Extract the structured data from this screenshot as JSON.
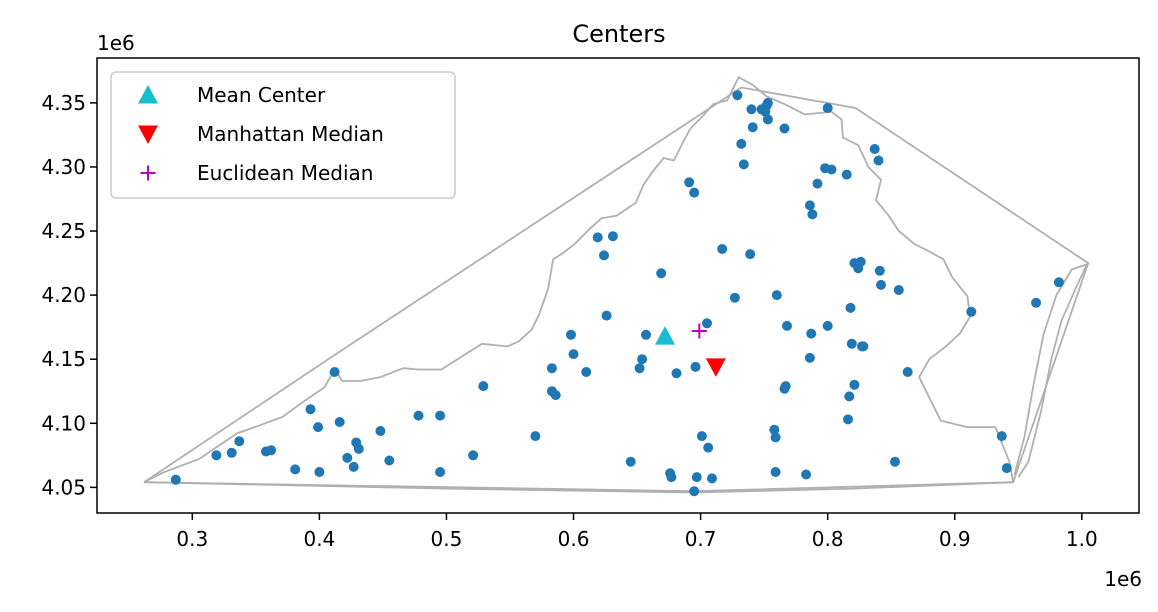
{
  "chart_data": {
    "type": "scatter",
    "title": "Centers",
    "xlabel": "",
    "ylabel": "",
    "x_offset_text": "1e6",
    "y_offset_text": "1e6",
    "x_scale": 1000000,
    "y_scale": 1000000,
    "xlim": [
      0.225,
      1.045
    ],
    "ylim": [
      4.03,
      4.385
    ],
    "x_ticks": [
      0.3,
      0.4,
      0.5,
      0.6,
      0.7,
      0.8,
      0.9,
      1.0
    ],
    "x_tick_labels": [
      "0.3",
      "0.4",
      "0.5",
      "0.6",
      "0.7",
      "0.8",
      "0.9",
      "1.0"
    ],
    "y_ticks": [
      4.05,
      4.1,
      4.15,
      4.2,
      4.25,
      4.3,
      4.35
    ],
    "y_tick_labels": [
      "4.05",
      "4.10",
      "4.15",
      "4.20",
      "4.25",
      "4.30",
      "4.35"
    ],
    "grid": false,
    "legend_position": "upper-left",
    "colors": {
      "points": "#1f77b4",
      "mean_center": "#17becf",
      "manhattan_median": "#ff0000",
      "euclidean_median": "#bf00bf",
      "outline": "#b0b0b0"
    },
    "series": [
      {
        "name": "Mean Center",
        "marker": "triangle-up",
        "color": "#17becf",
        "x": [
          0.672
        ],
        "y": [
          4.168
        ]
      },
      {
        "name": "Manhattan Median",
        "marker": "triangle-down",
        "color": "#ff0000",
        "x": [
          0.712
        ],
        "y": [
          4.144
        ]
      },
      {
        "name": "Euclidean Median",
        "marker": "plus",
        "color": "#bf00bf",
        "x": [
          0.699
        ],
        "y": [
          4.172
        ]
      }
    ],
    "points": {
      "color": "#1f77b4",
      "x": [
        0.287,
        0.319,
        0.331,
        0.337,
        0.358,
        0.362,
        0.381,
        0.393,
        0.399,
        0.4,
        0.412,
        0.416,
        0.422,
        0.427,
        0.429,
        0.431,
        0.448,
        0.455,
        0.478,
        0.495,
        0.495,
        0.521,
        0.529,
        0.57,
        0.583,
        0.583,
        0.586,
        0.598,
        0.6,
        0.61,
        0.619,
        0.624,
        0.626,
        0.631,
        0.645,
        0.652,
        0.654,
        0.657,
        0.669,
        0.676,
        0.677,
        0.681,
        0.691,
        0.695,
        0.695,
        0.696,
        0.697,
        0.701,
        0.705,
        0.706,
        0.709,
        0.717,
        0.727,
        0.729,
        0.732,
        0.734,
        0.739,
        0.74,
        0.741,
        0.748,
        0.751,
        0.752,
        0.753,
        0.753,
        0.758,
        0.759,
        0.759,
        0.76,
        0.766,
        0.766,
        0.767,
        0.768,
        0.783,
        0.786,
        0.786,
        0.787,
        0.788,
        0.792,
        0.798,
        0.8,
        0.8,
        0.803,
        0.815,
        0.816,
        0.817,
        0.818,
        0.819,
        0.821,
        0.821,
        0.824,
        0.826,
        0.827,
        0.828,
        0.837,
        0.84,
        0.841,
        0.842,
        0.853,
        0.856,
        0.863,
        0.913,
        0.937,
        0.941,
        0.964,
        0.982
      ],
      "y": [
        4.056,
        4.075,
        4.077,
        4.086,
        4.078,
        4.079,
        4.064,
        4.111,
        4.097,
        4.062,
        4.14,
        4.101,
        4.073,
        4.066,
        4.085,
        4.08,
        4.094,
        4.071,
        4.106,
        4.062,
        4.106,
        4.075,
        4.129,
        4.09,
        4.125,
        4.143,
        4.122,
        4.169,
        4.154,
        4.14,
        4.245,
        4.231,
        4.184,
        4.246,
        4.07,
        4.143,
        4.15,
        4.169,
        4.217,
        4.061,
        4.058,
        4.139,
        4.288,
        4.28,
        4.047,
        4.144,
        4.058,
        4.09,
        4.178,
        4.081,
        4.057,
        4.236,
        4.198,
        4.356,
        4.318,
        4.302,
        4.232,
        4.345,
        4.331,
        4.345,
        4.343,
        4.348,
        4.35,
        4.337,
        4.095,
        4.062,
        4.089,
        4.2,
        4.127,
        4.33,
        4.129,
        4.176,
        4.06,
        4.27,
        4.151,
        4.17,
        4.263,
        4.287,
        4.299,
        4.346,
        4.176,
        4.298,
        4.294,
        4.103,
        4.121,
        4.19,
        4.162,
        4.13,
        4.225,
        4.221,
        4.226,
        4.16,
        4.16,
        4.314,
        4.305,
        4.219,
        4.208,
        4.07,
        4.204,
        4.14,
        4.187,
        4.09,
        4.065,
        4.194,
        4.21
      ]
    },
    "outline": {
      "color": "#b0b0b0",
      "hull": [
        [
          0.262,
          4.054
        ],
        [
          0.413,
          4.154
        ],
        [
          0.732,
          4.362
        ],
        [
          0.822,
          4.346
        ],
        [
          1.005,
          4.225
        ],
        [
          0.946,
          4.054
        ],
        [
          0.695,
          4.047
        ],
        [
          0.262,
          4.054
        ]
      ],
      "state": [
        [
          0.262,
          4.054
        ],
        [
          0.278,
          4.062
        ],
        [
          0.305,
          4.072
        ],
        [
          0.335,
          4.092
        ],
        [
          0.352,
          4.098
        ],
        [
          0.371,
          4.105
        ],
        [
          0.389,
          4.118
        ],
        [
          0.404,
          4.128
        ],
        [
          0.412,
          4.142
        ],
        [
          0.418,
          4.133
        ],
        [
          0.432,
          4.133
        ],
        [
          0.448,
          4.136
        ],
        [
          0.466,
          4.143
        ],
        [
          0.478,
          4.142
        ],
        [
          0.496,
          4.142
        ],
        [
          0.512,
          4.152
        ],
        [
          0.528,
          4.162
        ],
        [
          0.548,
          4.16
        ],
        [
          0.557,
          4.164
        ],
        [
          0.567,
          4.173
        ],
        [
          0.573,
          4.185
        ],
        [
          0.58,
          4.205
        ],
        [
          0.584,
          4.228
        ],
        [
          0.592,
          4.233
        ],
        [
          0.601,
          4.24
        ],
        [
          0.612,
          4.251
        ],
        [
          0.622,
          4.26
        ],
        [
          0.634,
          4.262
        ],
        [
          0.649,
          4.272
        ],
        [
          0.655,
          4.286
        ],
        [
          0.662,
          4.296
        ],
        [
          0.671,
          4.307
        ],
        [
          0.679,
          4.305
        ],
        [
          0.686,
          4.319
        ],
        [
          0.692,
          4.33
        ],
        [
          0.702,
          4.34
        ],
        [
          0.71,
          4.349
        ],
        [
          0.721,
          4.352
        ],
        [
          0.73,
          4.37
        ],
        [
          0.741,
          4.364
        ],
        [
          0.752,
          4.355
        ],
        [
          0.766,
          4.349
        ],
        [
          0.782,
          4.341
        ],
        [
          0.803,
          4.343
        ],
        [
          0.811,
          4.337
        ],
        [
          0.812,
          4.323
        ],
        [
          0.824,
          4.317
        ],
        [
          0.832,
          4.3
        ],
        [
          0.842,
          4.29
        ],
        [
          0.838,
          4.274
        ],
        [
          0.848,
          4.262
        ],
        [
          0.856,
          4.25
        ],
        [
          0.868,
          4.24
        ],
        [
          0.88,
          4.234
        ],
        [
          0.891,
          4.228
        ],
        [
          0.898,
          4.214
        ],
        [
          0.91,
          4.199
        ],
        [
          0.912,
          4.183
        ],
        [
          0.904,
          4.17
        ],
        [
          0.893,
          4.16
        ],
        [
          0.88,
          4.15
        ],
        [
          0.872,
          4.136
        ],
        [
          0.88,
          4.12
        ],
        [
          0.889,
          4.102
        ],
        [
          0.91,
          4.097
        ],
        [
          0.932,
          4.097
        ],
        [
          0.943,
          4.07
        ],
        [
          0.946,
          4.054
        ],
        [
          0.82,
          4.049
        ],
        [
          0.695,
          4.046
        ],
        [
          0.5,
          4.049
        ],
        [
          0.262,
          4.054
        ]
      ],
      "eastern_shore": [
        [
          0.947,
          4.06
        ],
        [
          0.955,
          4.09
        ],
        [
          0.962,
          4.13
        ],
        [
          0.97,
          4.17
        ],
        [
          0.98,
          4.2
        ],
        [
          0.992,
          4.22
        ],
        [
          1.004,
          4.224
        ],
        [
          0.995,
          4.205
        ],
        [
          0.984,
          4.18
        ],
        [
          0.976,
          4.15
        ],
        [
          0.968,
          4.11
        ],
        [
          0.958,
          4.07
        ],
        [
          0.95,
          4.058
        ]
      ]
    }
  }
}
